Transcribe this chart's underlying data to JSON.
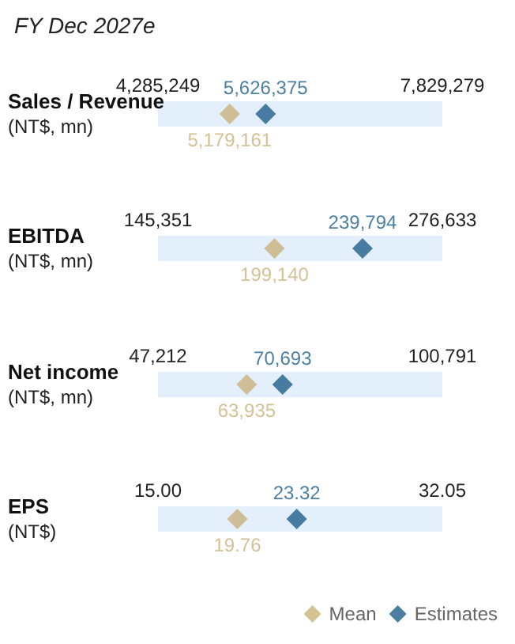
{
  "chart_data": [
    {
      "type": "scatter",
      "title": "FY Dec 2027e",
      "orientation": "horizontal",
      "categories": [
        "Sales / Revenue"
      ],
      "ylabel": "(NT$, mn)",
      "marker": "diamond",
      "xlim": [
        4285249,
        7829279
      ],
      "xticks": [
        {
          "value": 4285249,
          "label": "4,285,249"
        },
        {
          "value": 7829279,
          "label": "7,829,279"
        }
      ],
      "bands": [
        {
          "axis": "x",
          "from": 4285249,
          "to": 7829279,
          "color": "#e3effa"
        }
      ],
      "series": [
        {
          "color": "#c9b27c",
          "values": [
            5179161
          ],
          "value_labels": [
            "5,179,161"
          ]
        },
        {
          "color": "#1d5f8a",
          "values": [
            5626375
          ],
          "value_labels": [
            "5,626,375"
          ]
        }
      ]
    },
    {
      "type": "scatter",
      "orientation": "horizontal",
      "categories": [
        "EBITDA"
      ],
      "ylabel": "(NT$, mn)",
      "marker": "diamond",
      "xlim": [
        145351,
        276633
      ],
      "xticks": [
        {
          "value": 145351,
          "label": "145,351"
        },
        {
          "value": 276633,
          "label": "276,633"
        }
      ],
      "bands": [
        {
          "axis": "x",
          "from": 145351,
          "to": 276633,
          "color": "#e3effa"
        }
      ],
      "series": [
        {
          "color": "#c9b27c",
          "values": [
            199140
          ],
          "value_labels": [
            "199,140"
          ]
        },
        {
          "color": "#1d5f8a",
          "values": [
            239794
          ],
          "value_labels": [
            "239,794"
          ]
        }
      ]
    },
    {
      "type": "scatter",
      "orientation": "horizontal",
      "categories": [
        "Net income"
      ],
      "ylabel": "(NT$, mn)",
      "marker": "diamond",
      "xlim": [
        47212,
        100791
      ],
      "xticks": [
        {
          "value": 47212,
          "label": "47,212"
        },
        {
          "value": 100791,
          "label": "100,791"
        }
      ],
      "bands": [
        {
          "axis": "x",
          "from": 47212,
          "to": 100791,
          "color": "#e3effa"
        }
      ],
      "series": [
        {
          "color": "#c9b27c",
          "values": [
            63935
          ],
          "value_labels": [
            "63,935"
          ]
        },
        {
          "color": "#1d5f8a",
          "values": [
            70693
          ],
          "value_labels": [
            "70,693"
          ]
        }
      ]
    },
    {
      "type": "scatter",
      "orientation": "horizontal",
      "categories": [
        "EPS"
      ],
      "ylabel": "(NT$)",
      "marker": "diamond",
      "legend": "bottom right",
      "xlim": [
        15,
        32.05
      ],
      "xticks": [
        {
          "value": 15,
          "label": "15.00"
        },
        32.05
      ],
      "bands": [
        {
          "axis": "x",
          "from": 15,
          "to": 32.05,
          "color": "#e3effa"
        }
      ],
      "series": [
        {
          "name": "Mean",
          "color": "#c9b27c",
          "values": [
            19.76
          ],
          "value_labels": [
            "19.76"
          ]
        },
        {
          "name": "Estimates",
          "color": "#1d5f8a",
          "values": [
            23.32
          ],
          "value_labels": [
            "23.32"
          ]
        }
      ]
    }
  ]
}
